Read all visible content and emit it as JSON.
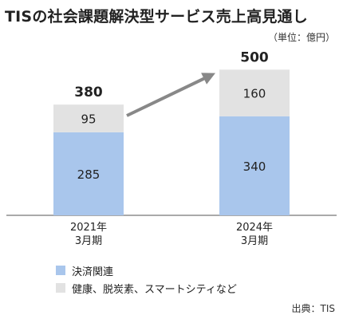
{
  "title": "TISの社会課題解決型サービス売上高見通し",
  "unit": "（単位：億円）",
  "source": "出典：TIS",
  "colors": {
    "accent": "#a9c6ec",
    "neutral": "#e2e2e2",
    "arrow": "#888888",
    "axis": "#555555"
  },
  "chart_data": {
    "type": "bar",
    "stacked": true,
    "categories": [
      "2021年|3月期",
      "2024年|3月期"
    ],
    "series": [
      {
        "name": "決済関連",
        "values": [
          285,
          340
        ],
        "color": "#a9c6ec"
      },
      {
        "name": "健康、脱炭素、スマートシティなど",
        "values": [
          95,
          160
        ],
        "color": "#e2e2e2"
      }
    ],
    "totals": [
      380,
      500
    ],
    "ylim": [
      0,
      520
    ],
    "legend": "bottom-left",
    "annotations": [
      "arrow-up-right"
    ]
  }
}
